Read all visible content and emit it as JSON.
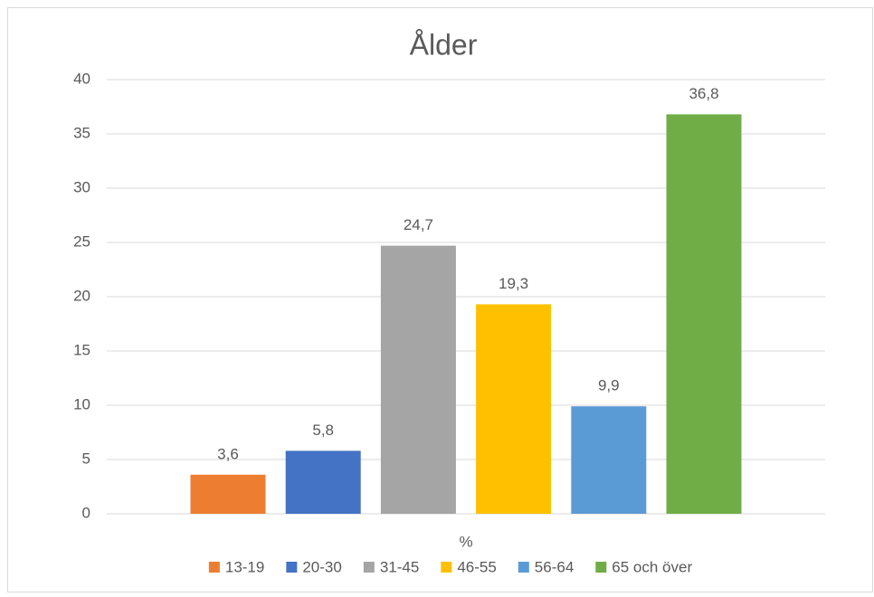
{
  "chart_data": {
    "type": "bar",
    "title": "Ålder",
    "categories": [
      "%"
    ],
    "series": [
      {
        "name": "13-19",
        "color": "#ed7d31",
        "values": [
          3.6
        ],
        "value_labels": [
          "3,6"
        ]
      },
      {
        "name": "20-30",
        "color": "#4472c4",
        "values": [
          5.8
        ],
        "value_labels": [
          "5,8"
        ]
      },
      {
        "name": "31-45",
        "color": "#a5a5a5",
        "values": [
          24.7
        ],
        "value_labels": [
          "24,7"
        ]
      },
      {
        "name": "46-55",
        "color": "#ffc000",
        "values": [
          19.3
        ],
        "value_labels": [
          "19,3"
        ]
      },
      {
        "name": "56-64",
        "color": "#5b9bd5",
        "values": [
          9.9
        ],
        "value_labels": [
          "9,9"
        ]
      },
      {
        "name": "65 och över",
        "color": "#70ad47",
        "values": [
          36.8
        ],
        "value_labels": [
          "36,8"
        ]
      }
    ],
    "ylim": [
      0,
      40
    ],
    "yticks": [
      0,
      5,
      10,
      15,
      20,
      25,
      30,
      35,
      40
    ],
    "grid": true,
    "legend": "bottom"
  }
}
